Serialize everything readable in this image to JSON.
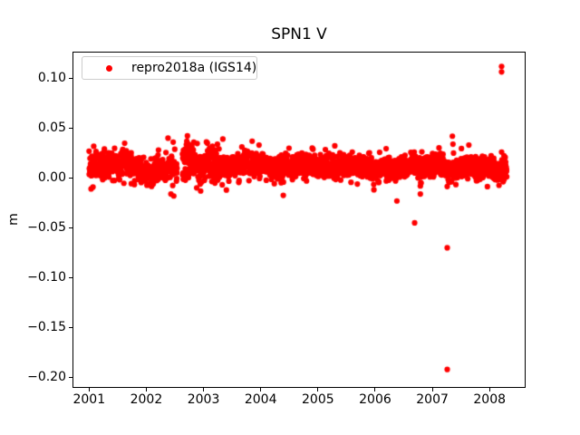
{
  "chart_data": {
    "type": "scatter",
    "title": "SPN1 V",
    "xlabel": "",
    "ylabel": "m",
    "background_color": "#ffffff",
    "axes_edge_color": "#000000",
    "tick_color": "#000000",
    "grid": false,
    "legend": {
      "position": "upper left",
      "border_color": "#cccccc"
    },
    "x_ticks": [
      2001,
      2002,
      2003,
      2004,
      2005,
      2006,
      2007,
      2008
    ],
    "y_ticks": [
      0.1,
      0.05,
      0.0,
      -0.05,
      -0.1,
      -0.15,
      -0.2
    ],
    "xlim": [
      2000.71,
      2008.63
    ],
    "ylim": [
      -0.2105,
      0.1268
    ],
    "marker_radius_px": 3.1,
    "series": [
      {
        "name": "repro2018a (IGS14)",
        "color": "#ff0000",
        "band": {
          "t_start": 2001.0,
          "t_end": 2008.3,
          "points_per_year": 370,
          "noise_sd": 0.0055,
          "tail_chance": 0.025,
          "gaps": [
            [
              2002.54,
              2002.63
            ]
          ],
          "sd_overrides": [
            [
              2001.0,
              2001.8,
              0.0065
            ],
            [
              2002.63,
              2003.35,
              0.008
            ]
          ],
          "mean_control_points": [
            [
              2001.0,
              0.009
            ],
            [
              2001.1,
              0.013
            ],
            [
              2001.25,
              0.012
            ],
            [
              2001.4,
              0.015
            ],
            [
              2001.55,
              0.013
            ],
            [
              2001.7,
              0.015
            ],
            [
              2001.8,
              0.011
            ],
            [
              2001.9,
              0.008
            ],
            [
              2002.0,
              0.005
            ],
            [
              2002.1,
              0.004
            ],
            [
              2002.2,
              0.009
            ],
            [
              2002.3,
              0.007
            ],
            [
              2002.4,
              0.012
            ],
            [
              2002.54,
              0.007
            ],
            [
              2002.63,
              0.014
            ],
            [
              2002.75,
              0.02
            ],
            [
              2002.85,
              0.017
            ],
            [
              2002.95,
              0.012
            ],
            [
              2003.05,
              0.016
            ],
            [
              2003.15,
              0.014
            ],
            [
              2003.3,
              0.016
            ],
            [
              2003.4,
              0.012
            ],
            [
              2003.5,
              0.01
            ],
            [
              2003.6,
              0.014
            ],
            [
              2003.7,
              0.012
            ],
            [
              2003.8,
              0.015
            ],
            [
              2003.9,
              0.012
            ],
            [
              2004.0,
              0.014
            ],
            [
              2004.1,
              0.012
            ],
            [
              2004.25,
              0.01
            ],
            [
              2004.4,
              0.013
            ],
            [
              2004.55,
              0.011
            ],
            [
              2004.7,
              0.014
            ],
            [
              2004.85,
              0.012
            ],
            [
              2005.0,
              0.011
            ],
            [
              2005.15,
              0.013
            ],
            [
              2005.3,
              0.01
            ],
            [
              2005.45,
              0.012
            ],
            [
              2005.6,
              0.012
            ],
            [
              2005.75,
              0.014
            ],
            [
              2005.9,
              0.01
            ],
            [
              2006.0,
              0.008
            ],
            [
              2006.15,
              0.01
            ],
            [
              2006.3,
              0.009
            ],
            [
              2006.45,
              0.011
            ],
            [
              2006.6,
              0.013
            ],
            [
              2006.7,
              0.015
            ],
            [
              2006.8,
              0.009
            ],
            [
              2006.9,
              0.011
            ],
            [
              2007.0,
              0.013
            ],
            [
              2007.1,
              0.014
            ],
            [
              2007.2,
              0.01
            ],
            [
              2007.3,
              0.007
            ],
            [
              2007.4,
              0.009
            ],
            [
              2007.5,
              0.012
            ],
            [
              2007.6,
              0.013
            ],
            [
              2007.7,
              0.009
            ],
            [
              2007.8,
              0.011
            ],
            [
              2007.9,
              0.012
            ],
            [
              2008.0,
              0.009
            ],
            [
              2008.1,
              0.007
            ],
            [
              2008.2,
              0.006
            ],
            [
              2008.3,
              0.008
            ]
          ]
        },
        "outliers": [
          [
            2002.38,
            0.04
          ],
          [
            2002.47,
            0.036
          ],
          [
            2002.83,
            0.036
          ],
          [
            2003.85,
            0.037
          ],
          [
            2004.9,
            0.03
          ],
          [
            2002.43,
            -0.016
          ],
          [
            2002.48,
            -0.018
          ],
          [
            2002.95,
            -0.013
          ],
          [
            2003.4,
            -0.012
          ],
          [
            2006.38,
            -0.023
          ],
          [
            2006.69,
            -0.045
          ],
          [
            2006.79,
            -0.016
          ],
          [
            2006.79,
            -0.008
          ],
          [
            2007.26,
            -0.07
          ],
          [
            2007.26,
            -0.192
          ],
          [
            2007.35,
            0.042
          ],
          [
            2007.36,
            0.034
          ],
          [
            2007.37,
            0.025
          ],
          [
            2008.21,
            0.112
          ],
          [
            2008.21,
            0.1065
          ],
          [
            2008.21,
            0.026
          ]
        ]
      }
    ]
  }
}
